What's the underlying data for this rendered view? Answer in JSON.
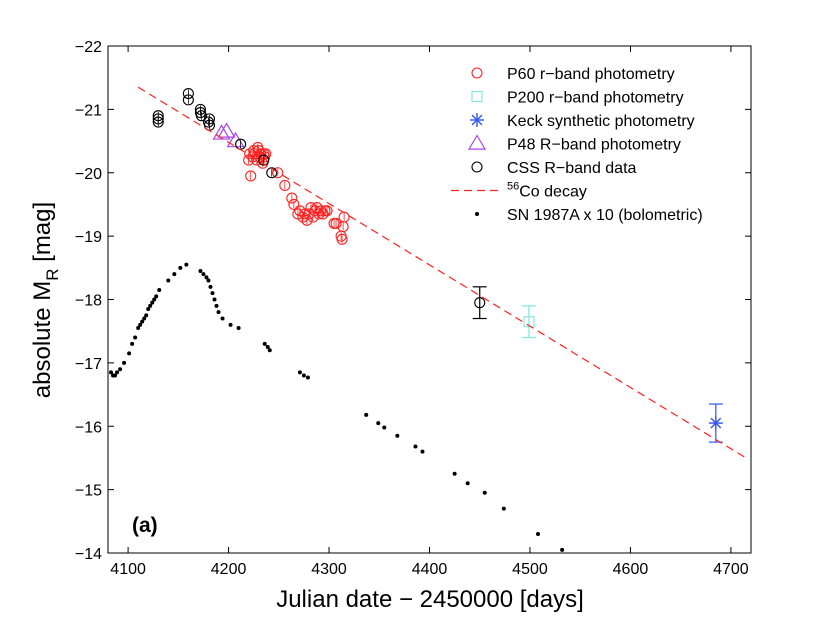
{
  "chart_data": {
    "type": "scatter",
    "panel_label": "(a)",
    "xlabel": "Julian date − 2450000 [days]",
    "ylabel_main": "absolute M",
    "ylabel_sub": "R",
    "ylabel_unit": " [mag]",
    "xlim": [
      4080,
      4720
    ],
    "ylim": [
      -14,
      -22
    ],
    "y_inverted": true,
    "grid": false,
    "xticks": [
      4100,
      4200,
      4300,
      4400,
      4500,
      4600,
      4700
    ],
    "xtick_labels": [
      "4100",
      "4200",
      "4300",
      "4400",
      "4500",
      "4600",
      "4700"
    ],
    "yticks": [
      -22,
      -21,
      -20,
      -19,
      -18,
      -17,
      -16,
      -15,
      -14
    ],
    "ytick_labels": [
      "−22",
      "−21",
      "−20",
      "−19",
      "−18",
      "−17",
      "−16",
      "−15",
      "−14"
    ],
    "legend_placement": "top-right",
    "legend": [
      {
        "key": "p60",
        "label": "P60 r−band photometry"
      },
      {
        "key": "p200",
        "label": "P200 r−band photometry"
      },
      {
        "key": "keck",
        "label": "Keck synthetic photometry"
      },
      {
        "key": "p48",
        "label": "P48 R−band photometry"
      },
      {
        "key": "css",
        "label": "CSS R−band data"
      },
      {
        "key": "co",
        "label_sup": "56",
        "label": "Co decay"
      },
      {
        "key": "sn87",
        "label": "SN 1987A x 10 (bolometric)"
      }
    ],
    "colors": {
      "p60": "#ff2222",
      "p200": "#7fe8d8",
      "keck": "#3355ee",
      "p48": "#aa44ee",
      "css": "#000000",
      "co": "#ff2222",
      "sn87": "#000000"
    },
    "series": [
      {
        "name": "P60 r−band photometry",
        "key": "p60",
        "marker": "circle",
        "points": [
          [
            4220,
            -20.2
          ],
          [
            4221,
            -20.3
          ],
          [
            4222,
            -19.95
          ],
          [
            4224,
            -20.25
          ],
          [
            4225,
            -20.35
          ],
          [
            4226,
            -20.3
          ],
          [
            4228,
            -20.2
          ],
          [
            4229,
            -20.4
          ],
          [
            4230,
            -20.35
          ],
          [
            4231,
            -20.25
          ],
          [
            4232,
            -20.3
          ],
          [
            4234,
            -20.15
          ],
          [
            4235,
            -20.3
          ],
          [
            4236,
            -20.25
          ],
          [
            4237,
            -20.3
          ],
          [
            4249,
            -20.0
          ],
          [
            4256,
            -19.8
          ],
          [
            4263,
            -19.6
          ],
          [
            4265,
            -19.5
          ],
          [
            4269,
            -19.35
          ],
          [
            4271,
            -19.4
          ],
          [
            4274,
            -19.3
          ],
          [
            4276,
            -19.35
          ],
          [
            4278,
            -19.25
          ],
          [
            4280,
            -19.35
          ],
          [
            4282,
            -19.45
          ],
          [
            4284,
            -19.3
          ],
          [
            4286,
            -19.4
          ],
          [
            4288,
            -19.45
          ],
          [
            4290,
            -19.35
          ],
          [
            4292,
            -19.4
          ],
          [
            4294,
            -19.35
          ],
          [
            4296,
            -19.4
          ],
          [
            4298,
            -19.4
          ],
          [
            4305,
            -19.2
          ],
          [
            4307,
            -19.2
          ],
          [
            4312,
            -19.0
          ],
          [
            4313,
            -18.95
          ],
          [
            4314,
            -19.15
          ],
          [
            4315,
            -19.3
          ]
        ]
      },
      {
        "name": "P200 r−band photometry",
        "key": "p200",
        "marker": "square",
        "points": [
          [
            4499,
            -17.65
          ]
        ],
        "errors": [
          0.25
        ]
      },
      {
        "name": "Keck synthetic photometry",
        "key": "keck",
        "marker": "asterisk",
        "points": [
          [
            4685,
            -16.05
          ]
        ],
        "errors": [
          0.3
        ]
      },
      {
        "name": "P48 R−band photometry",
        "key": "p48",
        "marker": "triangle",
        "points": [
          [
            4193,
            -20.62
          ],
          [
            4198,
            -20.65
          ],
          [
            4207,
            -20.5
          ]
        ]
      },
      {
        "name": "CSS R−band data",
        "key": "css",
        "marker": "circle",
        "points": [
          [
            4130,
            -20.8
          ],
          [
            4130,
            -20.85
          ],
          [
            4130,
            -20.9
          ],
          [
            4160,
            -21.25
          ],
          [
            4160,
            -21.15
          ],
          [
            4172,
            -20.95
          ],
          [
            4172,
            -21.0
          ],
          [
            4173,
            -20.9
          ],
          [
            4180,
            -20.8
          ],
          [
            4181,
            -20.75
          ],
          [
            4181,
            -20.85
          ],
          [
            4212,
            -20.45
          ],
          [
            4235,
            -20.2
          ],
          [
            4243,
            -20.0
          ],
          [
            4450,
            -17.95
          ]
        ],
        "errors_for_last": 0.25
      },
      {
        "name": "56Co decay",
        "key": "co",
        "marker": "dashed-line",
        "points": [
          [
            4110,
            -21.35
          ],
          [
            4715,
            -15.5
          ]
        ]
      },
      {
        "name": "SN 1987A x 10 (bolometric)",
        "key": "sn87",
        "marker": "dot",
        "points": [
          [
            4083,
            -16.85
          ],
          [
            4085,
            -16.8
          ],
          [
            4087,
            -16.8
          ],
          [
            4089,
            -16.85
          ],
          [
            4092,
            -16.9
          ],
          [
            4096,
            -17.0
          ],
          [
            4101,
            -17.15
          ],
          [
            4104,
            -17.3
          ],
          [
            4107,
            -17.4
          ],
          [
            4110,
            -17.55
          ],
          [
            4112,
            -17.6
          ],
          [
            4114,
            -17.65
          ],
          [
            4116,
            -17.7
          ],
          [
            4118,
            -17.75
          ],
          [
            4120,
            -17.85
          ],
          [
            4122,
            -17.9
          ],
          [
            4124,
            -17.95
          ],
          [
            4126,
            -18.0
          ],
          [
            4128,
            -18.05
          ],
          [
            4131,
            -18.15
          ],
          [
            4140,
            -18.3
          ],
          [
            4146,
            -18.4
          ],
          [
            4152,
            -18.5
          ],
          [
            4158,
            -18.55
          ],
          [
            4172,
            -18.45
          ],
          [
            4175,
            -18.4
          ],
          [
            4178,
            -18.35
          ],
          [
            4180,
            -18.3
          ],
          [
            4182,
            -18.2
          ],
          [
            4184,
            -18.1
          ],
          [
            4186,
            -18.0
          ],
          [
            4188,
            -17.9
          ],
          [
            4190,
            -17.8
          ],
          [
            4194,
            -17.7
          ],
          [
            4202,
            -17.6
          ],
          [
            4210,
            -17.55
          ],
          [
            4236,
            -17.3
          ],
          [
            4239,
            -17.25
          ],
          [
            4241,
            -17.2
          ],
          [
            4271,
            -16.85
          ],
          [
            4275,
            -16.8
          ],
          [
            4279,
            -16.77
          ],
          [
            4337,
            -16.18
          ],
          [
            4349,
            -16.05
          ],
          [
            4355,
            -15.98
          ],
          [
            4368,
            -15.85
          ],
          [
            4386,
            -15.68
          ],
          [
            4393,
            -15.6
          ],
          [
            4425,
            -15.25
          ],
          [
            4438,
            -15.1
          ],
          [
            4455,
            -14.95
          ],
          [
            4474,
            -14.7
          ],
          [
            4508,
            -14.3
          ],
          [
            4532,
            -14.05
          ]
        ]
      }
    ]
  }
}
